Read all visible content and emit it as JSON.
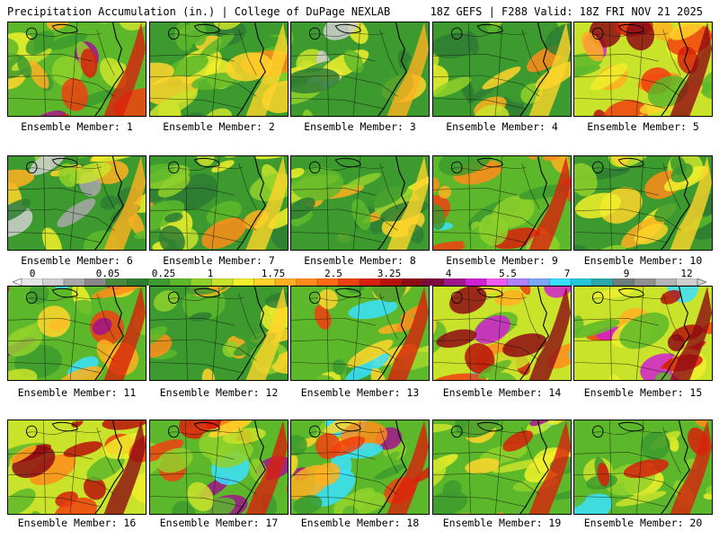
{
  "header": {
    "left_title": "Precipitation Accumulation (in.) | College of DuPage NEXLAB",
    "right_title": "18Z GEFS | F288 Valid: 18Z FRI NOV 21 2025"
  },
  "colorbar": {
    "labels": [
      "0",
      "0.05",
      "0.25",
      "1",
      "1.75",
      "2.5",
      "3.25",
      "4",
      "5.5",
      "7",
      "9",
      "12"
    ],
    "colors": [
      "#e6e6e6",
      "#cfcfcf",
      "#a8a8a8",
      "#888888",
      "#4a8a3a",
      "#2e7d32",
      "#3c9a2e",
      "#5cb82a",
      "#8fd12a",
      "#c9e32a",
      "#f0f02a",
      "#ffd52a",
      "#ffb020",
      "#ff8c1a",
      "#ff6a14",
      "#f0400f",
      "#d8200c",
      "#b8100a",
      "#8e0a14",
      "#7a0a3c",
      "#a0148c",
      "#d21ed2",
      "#f05af0",
      "#b080ff",
      "#7aa8ff",
      "#38e0ff",
      "#22c8d8",
      "#2aa8a8",
      "#6e7e7e",
      "#909090",
      "#b4b4b4",
      "#d0d0d0"
    ]
  },
  "members": [
    {
      "caption": "Ensemble Member: 1",
      "scheme": "mixed"
    },
    {
      "caption": "Ensemble Member: 2",
      "scheme": "green"
    },
    {
      "caption": "Ensemble Member: 3",
      "scheme": "gray"
    },
    {
      "caption": "Ensemble Member: 4",
      "scheme": "green"
    },
    {
      "caption": "Ensemble Member: 5",
      "scheme": "red"
    },
    {
      "caption": "Ensemble Member: 6",
      "scheme": "gray"
    },
    {
      "caption": "Ensemble Member: 7",
      "scheme": "green"
    },
    {
      "caption": "Ensemble Member: 8",
      "scheme": "green"
    },
    {
      "caption": "Ensemble Member: 9",
      "scheme": "mixed"
    },
    {
      "caption": "Ensemble Member: 10",
      "scheme": "green"
    },
    {
      "caption": "Ensemble Member: 11",
      "scheme": "mixed"
    },
    {
      "caption": "Ensemble Member: 12",
      "scheme": "green"
    },
    {
      "caption": "Ensemble Member: 13",
      "scheme": "mixed"
    },
    {
      "caption": "Ensemble Member: 14",
      "scheme": "red"
    },
    {
      "caption": "Ensemble Member: 15",
      "scheme": "red"
    },
    {
      "caption": "Ensemble Member: 16",
      "scheme": "red"
    },
    {
      "caption": "Ensemble Member: 17",
      "scheme": "mixed"
    },
    {
      "caption": "Ensemble Member: 18",
      "scheme": "mixed"
    },
    {
      "caption": "Ensemble Member: 19",
      "scheme": "mixed"
    },
    {
      "caption": "Ensemble Member: 20",
      "scheme": "mixed"
    }
  ]
}
